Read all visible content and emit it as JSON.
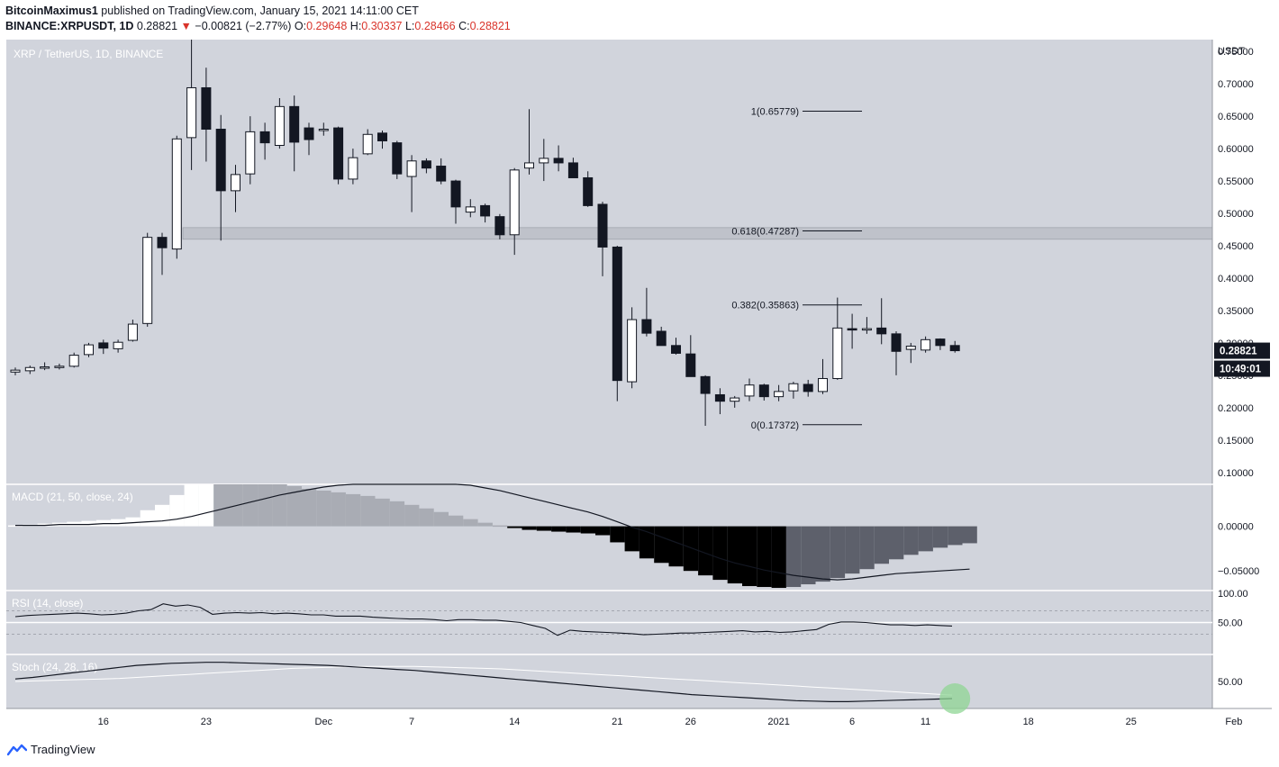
{
  "header": {
    "author": "BitcoinMaximus1",
    "published_text": "published on TradingView.com, January 15, 2021 14:11:00 CET",
    "symbol": "BINANCE:XRPUSDT, 1D",
    "last": "0.28821",
    "arrow": "▼",
    "change": "−0.00821 (−2.77%)",
    "o_label": "O:",
    "o_value": "0.29648",
    "h_label": "H:",
    "h_value": "0.30337",
    "l_label": "L:",
    "l_value": "0.28466",
    "c_label": "C:",
    "c_value": "0.28821"
  },
  "colors": {
    "background": "#d1d4dc",
    "up_candle": "#ffffff",
    "down_candle": "#131722",
    "zone": "#b2b5be",
    "hist_strong_up": "#ffffff",
    "hist_weak_up": "#a9acb4",
    "hist_strong_down": "#000000",
    "hist_weak_down": "#5d606b",
    "highlight": "#8fd694",
    "price_tag": "#131722"
  },
  "chart_data": {
    "type": "candlestick",
    "title": "XRP / TetherUS, 1D, BINANCE",
    "currency": "USDT",
    "y_ticks": [
      "0.75000",
      "0.70000",
      "0.65000",
      "0.60000",
      "0.55000",
      "0.50000",
      "0.45000",
      "0.40000",
      "0.35000",
      "0.30000",
      "0.25000",
      "0.20000",
      "0.15000",
      "0.10000"
    ],
    "ylim": [
      0.09,
      0.76
    ],
    "x_tick_labels": [
      {
        "label": "16",
        "index": 6
      },
      {
        "label": "23",
        "index": 13
      },
      {
        "label": "Dec",
        "index": 21
      },
      {
        "label": "7",
        "index": 27
      },
      {
        "label": "14",
        "index": 34
      },
      {
        "label": "21",
        "index": 41
      },
      {
        "label": "26",
        "index": 46
      },
      {
        "label": "2021",
        "index": 52
      },
      {
        "label": "6",
        "index": 57
      },
      {
        "label": "11",
        "index": 62
      },
      {
        "label": "18",
        "index": 69
      },
      {
        "label": "25",
        "index": 76
      },
      {
        "label": "Feb",
        "index": 83
      }
    ],
    "candles": [
      {
        "o": 0.255,
        "h": 0.262,
        "l": 0.25,
        "c": 0.258
      },
      {
        "o": 0.257,
        "h": 0.265,
        "l": 0.252,
        "c": 0.262
      },
      {
        "o": 0.262,
        "h": 0.27,
        "l": 0.258,
        "c": 0.263
      },
      {
        "o": 0.263,
        "h": 0.268,
        "l": 0.259,
        "c": 0.264
      },
      {
        "o": 0.264,
        "h": 0.285,
        "l": 0.262,
        "c": 0.281
      },
      {
        "o": 0.282,
        "h": 0.3,
        "l": 0.278,
        "c": 0.297
      },
      {
        "o": 0.3,
        "h": 0.305,
        "l": 0.283,
        "c": 0.292
      },
      {
        "o": 0.291,
        "h": 0.305,
        "l": 0.285,
        "c": 0.301
      },
      {
        "o": 0.304,
        "h": 0.336,
        "l": 0.302,
        "c": 0.329
      },
      {
        "o": 0.33,
        "h": 0.47,
        "l": 0.325,
        "c": 0.463
      },
      {
        "o": 0.463,
        "h": 0.47,
        "l": 0.405,
        "c": 0.447
      },
      {
        "o": 0.445,
        "h": 0.62,
        "l": 0.43,
        "c": 0.615
      },
      {
        "o": 0.617,
        "h": 0.78,
        "l": 0.567,
        "c": 0.694
      },
      {
        "o": 0.694,
        "h": 0.725,
        "l": 0.58,
        "c": 0.63
      },
      {
        "o": 0.63,
        "h": 0.652,
        "l": 0.458,
        "c": 0.535
      },
      {
        "o": 0.535,
        "h": 0.575,
        "l": 0.502,
        "c": 0.56
      },
      {
        "o": 0.561,
        "h": 0.65,
        "l": 0.545,
        "c": 0.626
      },
      {
        "o": 0.626,
        "h": 0.64,
        "l": 0.583,
        "c": 0.609
      },
      {
        "o": 0.605,
        "h": 0.678,
        "l": 0.6,
        "c": 0.665
      },
      {
        "o": 0.665,
        "h": 0.682,
        "l": 0.565,
        "c": 0.61
      },
      {
        "o": 0.632,
        "h": 0.64,
        "l": 0.59,
        "c": 0.614
      },
      {
        "o": 0.628,
        "h": 0.64,
        "l": 0.62,
        "c": 0.63
      },
      {
        "o": 0.632,
        "h": 0.634,
        "l": 0.545,
        "c": 0.553
      },
      {
        "o": 0.553,
        "h": 0.6,
        "l": 0.545,
        "c": 0.586
      },
      {
        "o": 0.592,
        "h": 0.63,
        "l": 0.59,
        "c": 0.622
      },
      {
        "o": 0.624,
        "h": 0.628,
        "l": 0.6,
        "c": 0.612
      },
      {
        "o": 0.609,
        "h": 0.612,
        "l": 0.553,
        "c": 0.561
      },
      {
        "o": 0.557,
        "h": 0.59,
        "l": 0.502,
        "c": 0.581
      },
      {
        "o": 0.581,
        "h": 0.585,
        "l": 0.562,
        "c": 0.57
      },
      {
        "o": 0.573,
        "h": 0.585,
        "l": 0.545,
        "c": 0.55
      },
      {
        "o": 0.55,
        "h": 0.552,
        "l": 0.484,
        "c": 0.51
      },
      {
        "o": 0.502,
        "h": 0.522,
        "l": 0.494,
        "c": 0.51
      },
      {
        "o": 0.512,
        "h": 0.515,
        "l": 0.486,
        "c": 0.496
      },
      {
        "o": 0.495,
        "h": 0.499,
        "l": 0.46,
        "c": 0.467
      },
      {
        "o": 0.467,
        "h": 0.57,
        "l": 0.436,
        "c": 0.567
      },
      {
        "o": 0.57,
        "h": 0.661,
        "l": 0.56,
        "c": 0.578
      },
      {
        "o": 0.578,
        "h": 0.615,
        "l": 0.55,
        "c": 0.585
      },
      {
        "o": 0.585,
        "h": 0.605,
        "l": 0.565,
        "c": 0.578
      },
      {
        "o": 0.578,
        "h": 0.586,
        "l": 0.555,
        "c": 0.555
      },
      {
        "o": 0.555,
        "h": 0.565,
        "l": 0.51,
        "c": 0.512
      },
      {
        "o": 0.514,
        "h": 0.518,
        "l": 0.403,
        "c": 0.448
      },
      {
        "o": 0.448,
        "h": 0.45,
        "l": 0.21,
        "c": 0.242
      },
      {
        "o": 0.24,
        "h": 0.355,
        "l": 0.23,
        "c": 0.336
      },
      {
        "o": 0.336,
        "h": 0.385,
        "l": 0.31,
        "c": 0.315
      },
      {
        "o": 0.318,
        "h": 0.325,
        "l": 0.296,
        "c": 0.296
      },
      {
        "o": 0.296,
        "h": 0.308,
        "l": 0.282,
        "c": 0.284
      },
      {
        "o": 0.283,
        "h": 0.312,
        "l": 0.248,
        "c": 0.248
      },
      {
        "o": 0.248,
        "h": 0.25,
        "l": 0.172,
        "c": 0.222
      },
      {
        "o": 0.22,
        "h": 0.23,
        "l": 0.19,
        "c": 0.21
      },
      {
        "o": 0.21,
        "h": 0.218,
        "l": 0.2,
        "c": 0.215
      },
      {
        "o": 0.218,
        "h": 0.245,
        "l": 0.21,
        "c": 0.235
      },
      {
        "o": 0.235,
        "h": 0.237,
        "l": 0.211,
        "c": 0.217
      },
      {
        "o": 0.217,
        "h": 0.235,
        "l": 0.21,
        "c": 0.225
      },
      {
        "o": 0.226,
        "h": 0.24,
        "l": 0.214,
        "c": 0.237
      },
      {
        "o": 0.236,
        "h": 0.243,
        "l": 0.217,
        "c": 0.225
      },
      {
        "o": 0.225,
        "h": 0.275,
        "l": 0.221,
        "c": 0.245
      },
      {
        "o": 0.245,
        "h": 0.37,
        "l": 0.243,
        "c": 0.323
      },
      {
        "o": 0.322,
        "h": 0.345,
        "l": 0.291,
        "c": 0.32
      },
      {
        "o": 0.32,
        "h": 0.34,
        "l": 0.314,
        "c": 0.322
      },
      {
        "o": 0.323,
        "h": 0.369,
        "l": 0.298,
        "c": 0.314
      },
      {
        "o": 0.314,
        "h": 0.318,
        "l": 0.25,
        "c": 0.287
      },
      {
        "o": 0.29,
        "h": 0.3,
        "l": 0.269,
        "c": 0.295
      },
      {
        "o": 0.289,
        "h": 0.31,
        "l": 0.285,
        "c": 0.305
      },
      {
        "o": 0.306,
        "h": 0.307,
        "l": 0.289,
        "c": 0.296
      },
      {
        "o": 0.296,
        "h": 0.303,
        "l": 0.285,
        "c": 0.288
      }
    ],
    "resistance_zone": [
      0.46,
      0.478
    ],
    "fib_levels": [
      {
        "label": "1(0.65779)",
        "value": 0.65779
      },
      {
        "label": "0.618(0.47287)",
        "value": 0.47287
      },
      {
        "label": "0.382(0.35863)",
        "value": 0.35863
      },
      {
        "label": "0(0.17372)",
        "value": 0.17372
      }
    ],
    "price_tag": "0.28821",
    "countdown": "10:49:01",
    "macd": {
      "label": "MACD (21, 50, close, 24)",
      "y_ticks": [
        "0.00000",
        "−0.05000"
      ],
      "ylim": [
        -0.072,
        0.047
      ],
      "histogram": [
        0.001,
        0.002,
        0.003,
        0.004,
        0.005,
        0.006,
        0.007,
        0.008,
        0.01,
        0.018,
        0.024,
        0.035,
        0.05,
        0.056,
        0.055,
        0.054,
        0.052,
        0.05,
        0.048,
        0.045,
        0.042,
        0.04,
        0.038,
        0.036,
        0.034,
        0.031,
        0.028,
        0.024,
        0.02,
        0.016,
        0.012,
        0.008,
        0.004,
        0.001,
        -0.002,
        -0.004,
        -0.005,
        -0.006,
        -0.007,
        -0.008,
        -0.01,
        -0.018,
        -0.028,
        -0.036,
        -0.041,
        -0.045,
        -0.05,
        -0.055,
        -0.06,
        -0.064,
        -0.067,
        -0.068,
        -0.069,
        -0.068,
        -0.065,
        -0.062,
        -0.058,
        -0.053,
        -0.048,
        -0.042,
        -0.037,
        -0.032,
        -0.028,
        -0.024,
        -0.021,
        -0.019
      ],
      "signal": [
        0.001,
        0.001,
        0.001,
        0.002,
        0.002,
        0.002,
        0.003,
        0.003,
        0.004,
        0.005,
        0.006,
        0.008,
        0.011,
        0.015,
        0.019,
        0.023,
        0.027,
        0.031,
        0.035,
        0.038,
        0.041,
        0.044,
        0.046,
        0.048,
        0.05,
        0.051,
        0.052,
        0.052,
        0.051,
        0.05,
        0.048,
        0.046,
        0.043,
        0.04,
        0.036,
        0.032,
        0.028,
        0.024,
        0.02,
        0.016,
        0.011,
        0.005,
        -0.001,
        -0.006,
        -0.012,
        -0.018,
        -0.024,
        -0.03,
        -0.036,
        -0.041,
        -0.045,
        -0.049,
        -0.052,
        -0.055,
        -0.057,
        -0.059,
        -0.06,
        -0.059,
        -0.057,
        -0.055,
        -0.053,
        -0.052,
        -0.051,
        -0.05,
        -0.049,
        -0.048
      ]
    },
    "rsi": {
      "label": "RSI (14, close)",
      "y_ticks": [
        "100.00",
        "50.00"
      ],
      "ylim": [
        0,
        100
      ],
      "bands": [
        70,
        50,
        30
      ],
      "values": [
        60,
        62,
        63,
        64,
        65,
        66,
        65,
        63,
        64,
        66,
        70,
        72,
        82,
        78,
        80,
        76,
        64,
        66,
        67,
        66,
        67,
        65,
        66,
        65,
        63,
        63,
        61,
        61,
        61,
        59,
        58,
        57,
        56,
        56,
        55,
        53,
        55,
        55,
        54,
        54,
        52,
        50,
        45,
        40,
        28,
        37,
        35,
        34,
        33,
        32,
        31,
        29,
        30,
        31,
        32,
        32,
        33,
        34,
        35,
        36,
        34,
        35,
        33,
        34,
        36,
        38,
        47,
        51,
        51,
        50,
        48,
        46,
        46,
        45,
        46,
        45,
        44
      ]
    },
    "stoch": {
      "label": "Stoch (24, 28, 16)",
      "y_ticks": [
        "50.00"
      ],
      "ylim": [
        0,
        100
      ],
      "k": [
        55,
        58,
        62,
        66,
        70,
        74,
        78,
        82,
        84,
        86,
        87,
        88,
        88,
        87,
        86,
        85,
        84,
        83,
        82,
        80,
        78,
        76,
        74,
        72,
        69,
        66,
        63,
        60,
        57,
        54,
        51,
        48,
        45,
        42,
        39,
        36,
        33,
        30,
        27,
        24,
        22,
        20,
        18,
        16,
        14,
        12,
        11,
        10,
        10,
        11,
        12,
        13,
        14,
        15,
        16
      ],
      "d": [
        50,
        51,
        52,
        53,
        54,
        55,
        56,
        58,
        60,
        62,
        64,
        66,
        68,
        70,
        72,
        74,
        76,
        77,
        78,
        79,
        80,
        80,
        80,
        80,
        79,
        78,
        77,
        76,
        75,
        73,
        71,
        69,
        67,
        65,
        63,
        61,
        59,
        57,
        55,
        53,
        51,
        49,
        47,
        45,
        43,
        41,
        39,
        37,
        35,
        33,
        31,
        29,
        27,
        25,
        23
      ],
      "highlight_index": 64
    }
  },
  "footer": {
    "brand": "TradingView"
  }
}
